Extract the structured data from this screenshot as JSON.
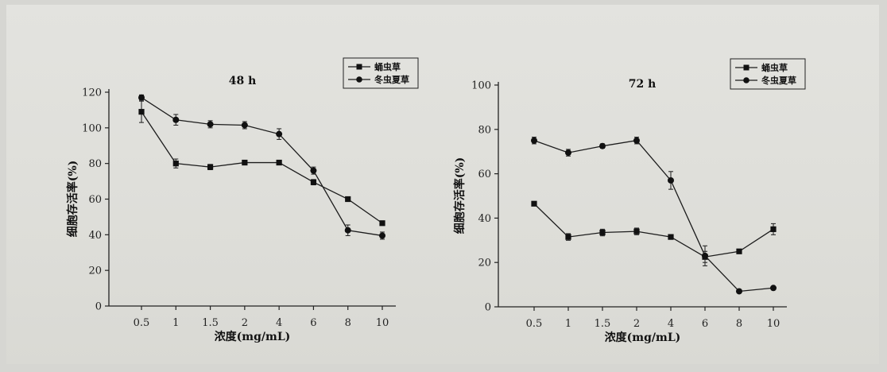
{
  "chart_data": [
    {
      "type": "line",
      "title": "48 h",
      "xlabel": "浓度(mg/mL)",
      "ylabel": "细胞存活率(%)",
      "categories": [
        "0.5",
        "1",
        "1.5",
        "2",
        "4",
        "6",
        "8",
        "10"
      ],
      "ylim": [
        0,
        120
      ],
      "yticks": [
        "0",
        "20",
        "40",
        "60",
        "80",
        "100",
        "120"
      ],
      "legend_position": "top-right",
      "series": [
        {
          "name": "蛹虫草",
          "marker": "square",
          "values": [
            109,
            80,
            78,
            80.5,
            80.5,
            69.5,
            60,
            46.5
          ],
          "errors": [
            6,
            2.5,
            1.5,
            1,
            1,
            1.5,
            1,
            1
          ]
        },
        {
          "name": "冬虫夏草",
          "marker": "circle",
          "values": [
            117,
            104.5,
            102,
            101.5,
            96.5,
            76,
            42.5,
            39.5
          ],
          "errors": [
            1.5,
            3,
            2,
            2,
            3,
            2,
            3,
            2
          ]
        }
      ]
    },
    {
      "type": "line",
      "title": "72 h",
      "xlabel": "浓度(mg/mL)",
      "ylabel": "细胞存活率(%)",
      "categories": [
        "0.5",
        "1",
        "1.5",
        "2",
        "4",
        "6",
        "8",
        "10"
      ],
      "ylim": [
        0,
        100
      ],
      "yticks": [
        "0",
        "20",
        "40",
        "60",
        "80",
        "100"
      ],
      "legend_position": "top-right",
      "series": [
        {
          "name": "蛹虫草",
          "marker": "square",
          "values": [
            46.5,
            31.5,
            33.5,
            34,
            31.5,
            22.5,
            25,
            35
          ],
          "errors": [
            0.5,
            1.5,
            1.5,
            1.5,
            0.5,
            2.5,
            0.5,
            2.5
          ]
        },
        {
          "name": "冬虫夏草",
          "marker": "circle",
          "values": [
            75,
            69.5,
            72.5,
            75,
            57,
            23,
            7,
            8.5
          ],
          "errors": [
            1.5,
            1.5,
            1,
            1.5,
            4,
            4.5,
            0.5,
            0.5
          ]
        }
      ]
    }
  ]
}
